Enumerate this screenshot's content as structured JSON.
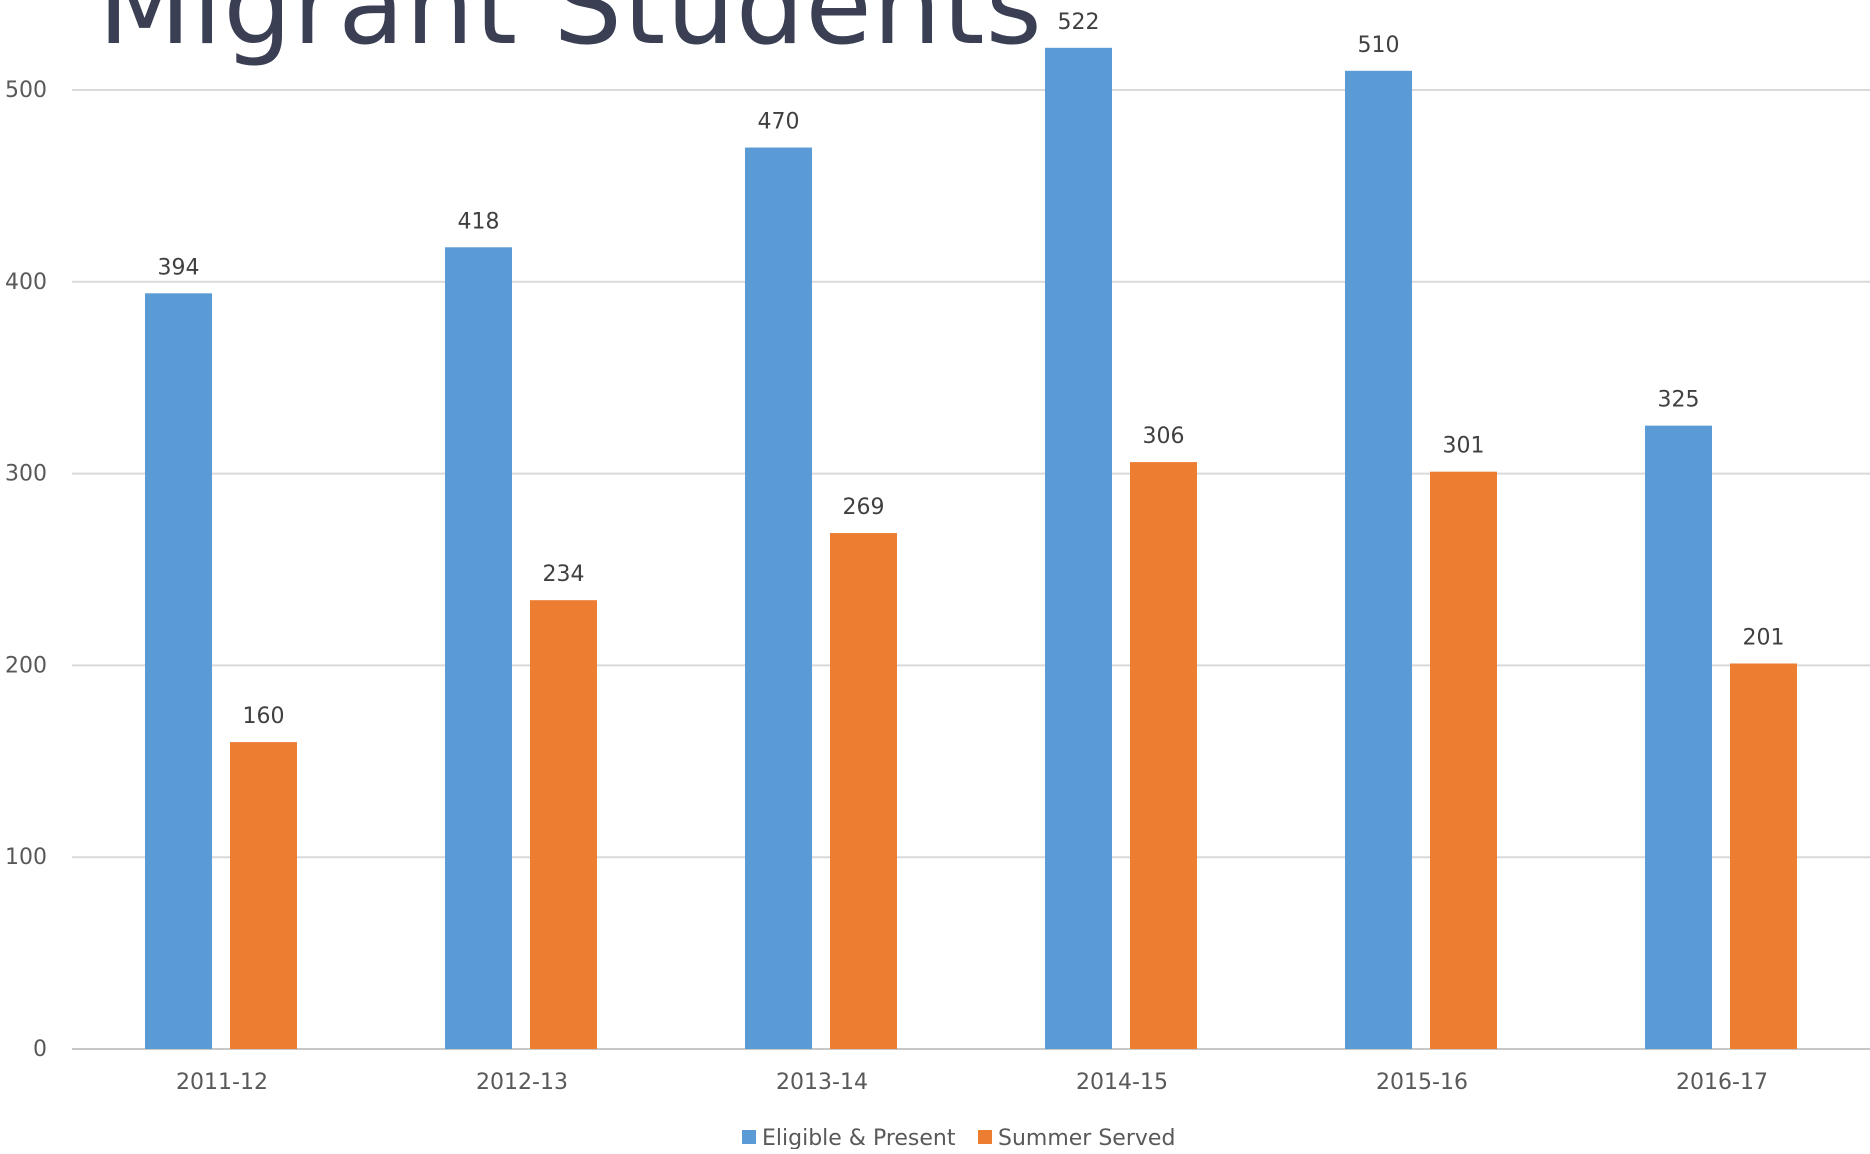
{
  "page": {
    "title": "Migrant Students"
  },
  "chart_data": {
    "type": "bar",
    "title": "Migrant Students",
    "categories": [
      "2011-12",
      "2012-13",
      "2013-14",
      "2014-15",
      "2015-16",
      "2016-17"
    ],
    "series": [
      {
        "name": "Eligible & Present",
        "values": [
          394,
          418,
          470,
          522,
          510,
          325
        ],
        "color": "#5b9bd5"
      },
      {
        "name": "Summer Served",
        "values": [
          160,
          234,
          269,
          306,
          301,
          201
        ],
        "color": "#ed7d31"
      }
    ],
    "y_ticks": [
      "0",
      "100",
      "200",
      "300",
      "400",
      "500"
    ],
    "ylim": [
      0,
      600
    ],
    "grid": true,
    "legend": "bottom",
    "xlabel": "",
    "ylabel": ""
  }
}
